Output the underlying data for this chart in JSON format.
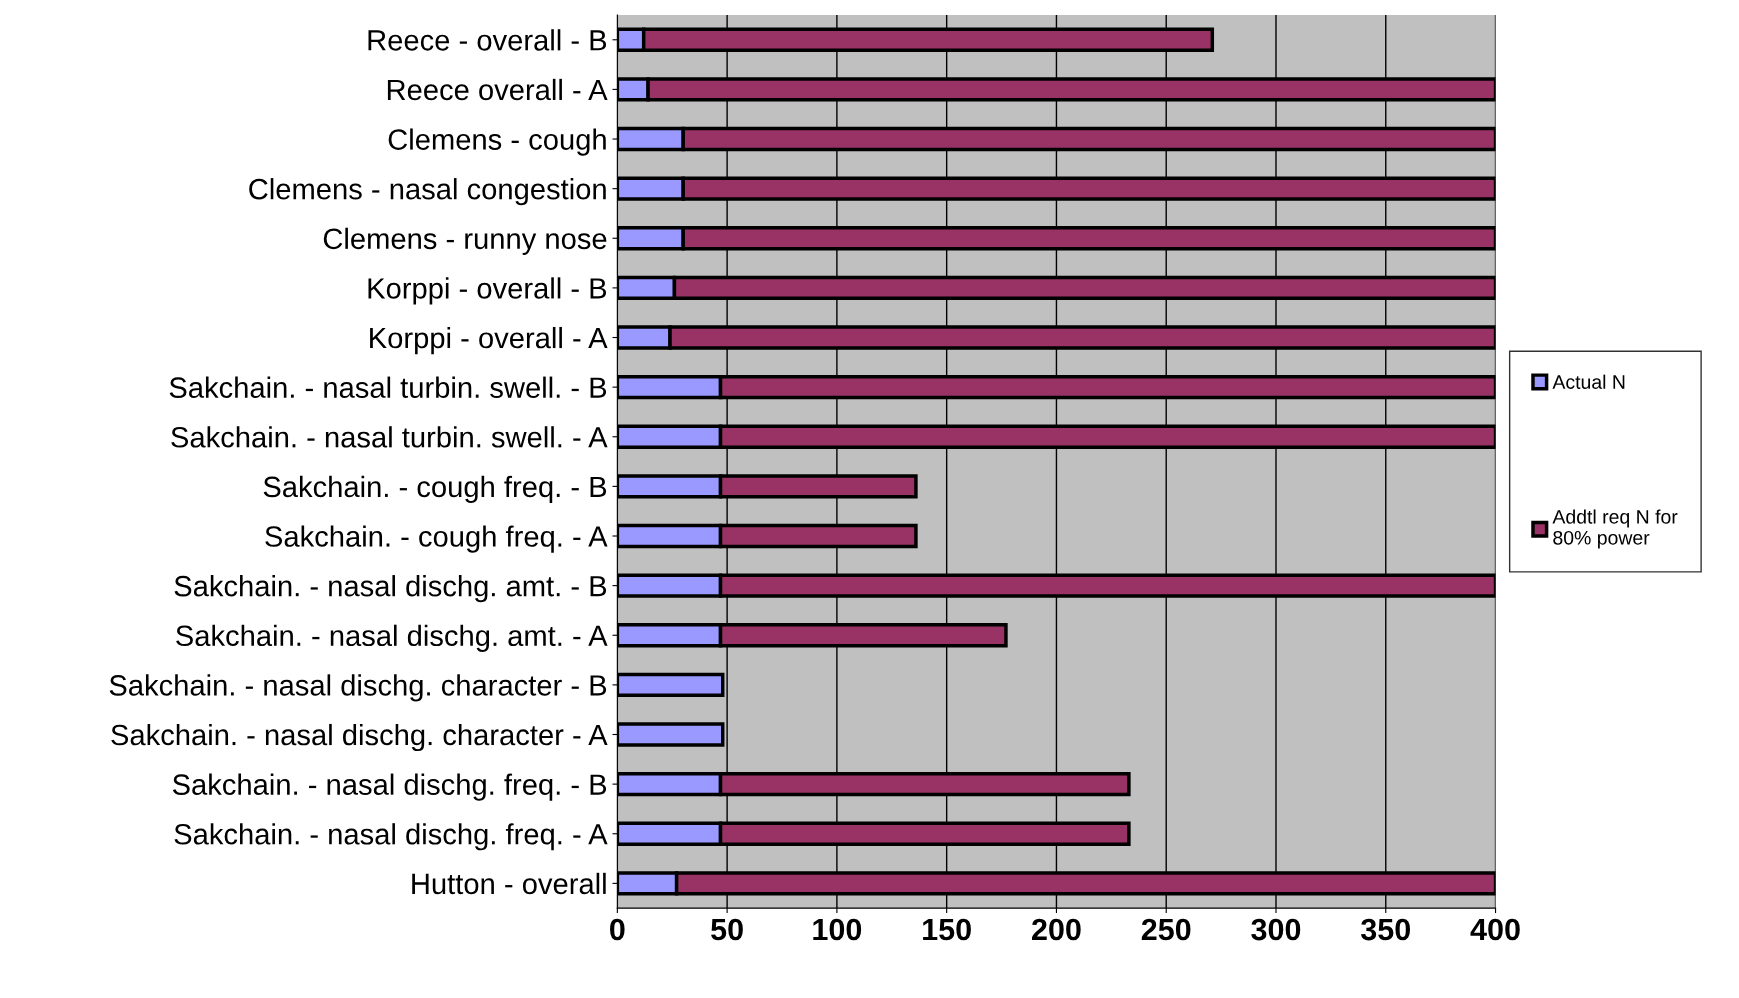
{
  "chart_data": {
    "type": "bar",
    "orientation": "horizontal",
    "stacked": true,
    "categories": [
      "Reece - overall - B",
      "Reece overall - A",
      "Clemens - cough",
      "Clemens - nasal congestion",
      "Clemens - runny nose",
      "Korppi - overall - B",
      "Korppi - overall - A",
      "Sakchain. - nasal turbin. swell. - B",
      "Sakchain. - nasal turbin. swell. - A",
      "Sakchain. - cough freq. - B",
      "Sakchain. - cough freq. - A",
      "Sakchain. - nasal dischg. amt. - B",
      "Sakchain. - nasal dischg. amt. - A",
      "Sakchain. - nasal dischg. character - B",
      "Sakchain. - nasal dischg. character - A",
      "Sakchain. - nasal dischg. freq. - B",
      "Sakchain. - nasal dischg. freq. - A",
      "Hutton - overall"
    ],
    "series": [
      {
        "name": "Actual N",
        "color": "#9999ff",
        "values": [
          12,
          14,
          30,
          30,
          30,
          26,
          24,
          47,
          47,
          47,
          47,
          47,
          47,
          48,
          48,
          47,
          47,
          27
        ]
      },
      {
        "name": "Addtl req N for 80% power",
        "color": "#993366",
        "values": [
          259,
          386,
          370,
          370,
          370,
          374,
          376,
          353,
          353,
          89,
          89,
          353,
          130,
          0,
          0,
          186,
          186,
          373
        ]
      }
    ],
    "xlim": [
      0,
      400
    ],
    "xticks": [
      0,
      50,
      100,
      150,
      200,
      250,
      300,
      350,
      400
    ],
    "grid": "x",
    "legend": "right"
  }
}
